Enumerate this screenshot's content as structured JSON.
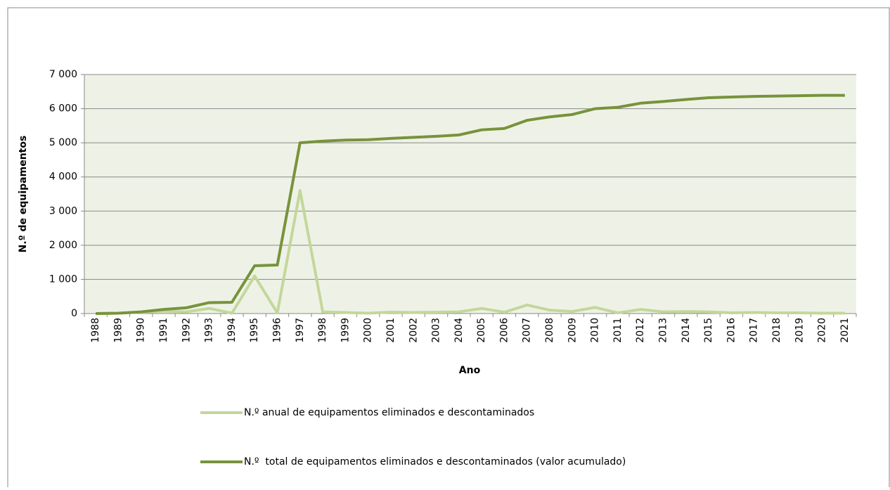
{
  "chart_data": {
    "type": "line",
    "y_label": "N.º de equipamentos",
    "x_label": "Ano",
    "categories": [
      "1988",
      "1989",
      "1990",
      "1991",
      "1992",
      "1993",
      "1994",
      "1995",
      "1996",
      "1997",
      "1998",
      "1999",
      "2000",
      "2001",
      "2002",
      "2003",
      "2004",
      "2005",
      "2006",
      "2007",
      "2008",
      "2009",
      "2010",
      "2011",
      "2012",
      "2013",
      "2014",
      "2015",
      "2016",
      "2017",
      "2018",
      "2019",
      "2020",
      "2021"
    ],
    "series": [
      {
        "name": "N.º anual de equipamentos eliminados e descontaminados",
        "color": "#c4d79b",
        "values": [
          0,
          10,
          40,
          70,
          50,
          150,
          10,
          1100,
          20,
          3600,
          50,
          30,
          10,
          40,
          30,
          40,
          50,
          150,
          40,
          250,
          100,
          60,
          180,
          20,
          120,
          50,
          60,
          50,
          20,
          30,
          20,
          20,
          10,
          10
        ]
      },
      {
        "name": "N.º  total de equipamentos eliminados e descontaminados (valor acumulado)",
        "color": "#77933c",
        "values": [
          0,
          10,
          50,
          120,
          170,
          320,
          330,
          1400,
          1420,
          5000,
          5050,
          5080,
          5090,
          5130,
          5160,
          5190,
          5230,
          5380,
          5420,
          5660,
          5760,
          5830,
          6000,
          6040,
          6160,
          6210,
          6270,
          6320,
          6340,
          6360,
          6370,
          6380,
          6390,
          6390
        ]
      }
    ],
    "ylim": [
      0,
      7000
    ],
    "yticks": [
      0,
      {
        "value": 1000,
        "label": "1 000"
      },
      {
        "value": 2000,
        "label": "2 000"
      },
      {
        "value": 3000,
        "label": "3 000"
      },
      {
        "value": 4000,
        "label": "4 000"
      },
      {
        "value": 5000,
        "label": "5 000"
      },
      {
        "value": 6000,
        "label": "6 000"
      },
      {
        "value": 7000,
        "label": "7 000"
      }
    ],
    "grid": true,
    "legend": "bottom",
    "plot_background": "#eef2e6"
  }
}
